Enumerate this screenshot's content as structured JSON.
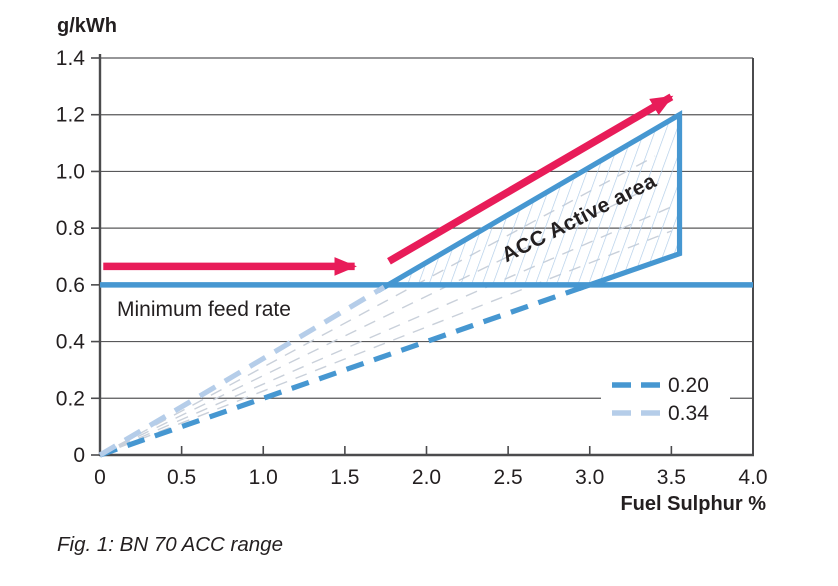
{
  "figure": {
    "caption": "Fig. 1: BN 70 ACC range"
  },
  "chart_data": {
    "type": "line",
    "title": "",
    "ylabel": "g/kWh",
    "xlabel": "Fuel Sulphur %",
    "xlim": [
      0,
      4.0
    ],
    "ylim": [
      0,
      1.4
    ],
    "grid": "horizontal",
    "legend_position": "lower-right",
    "x_ticks": [
      0,
      0.5,
      1.0,
      1.5,
      2.0,
      2.5,
      3.0,
      3.5,
      4.0
    ],
    "x_tick_labels": [
      "0",
      "0.5",
      "1.0",
      "1.5",
      "2.0",
      "2.5",
      "3.0",
      "3.5",
      "4.0"
    ],
    "y_ticks": [
      0,
      0.2,
      0.4,
      0.6,
      0.8,
      1.0,
      1.2,
      1.4
    ],
    "y_tick_labels": [
      "0",
      "0.2",
      "0.4",
      "0.6",
      "0.8",
      "1.0",
      "1.2",
      "1.4"
    ],
    "colors": {
      "red": "#e81c59",
      "blue": "#4697d1",
      "light_blue": "#b5cde9",
      "hatch": "#aecbe8",
      "grid": "#58585a",
      "axis": "#4b4b4d",
      "faint": "#c9d0da",
      "text": "#231f20"
    },
    "series": [
      {
        "name": "minimum_feed_rate",
        "label": "Minimum feed rate",
        "style": "solid",
        "color_key": "blue",
        "width": 5.5,
        "points": [
          [
            0,
            0.6
          ],
          [
            4.0,
            0.6
          ]
        ]
      },
      {
        "name": "ratio_0_20",
        "label": "0.20",
        "style": "dashed",
        "color_key": "blue",
        "width": 5.2,
        "points": [
          [
            0,
            0
          ],
          [
            2.96,
            0.592
          ]
        ]
      },
      {
        "name": "ratio_0_34",
        "label": "0.34",
        "style": "dashed",
        "color_key": "light_blue",
        "width": 5.2,
        "points": [
          [
            0,
            0
          ],
          [
            1.74,
            0.592
          ]
        ]
      }
    ],
    "guide_lines": [
      {
        "points": [
          [
            0,
            0
          ],
          [
            3.5,
            0.79
          ]
        ]
      },
      {
        "points": [
          [
            0,
            0
          ],
          [
            3.5,
            0.875
          ]
        ]
      },
      {
        "points": [
          [
            0,
            0
          ],
          [
            3.45,
            0.966
          ]
        ]
      },
      {
        "points": [
          [
            0,
            0
          ],
          [
            3.4,
            1.054
          ]
        ]
      }
    ],
    "active_area": {
      "label": "ACC Active area",
      "vertices": [
        [
          1.765,
          0.6
        ],
        [
          3.55,
          1.2
        ],
        [
          3.55,
          0.71
        ],
        [
          3.0,
          0.6
        ]
      ]
    },
    "arrows": [
      {
        "name": "constant-feed-rate-arrow",
        "points": [
          [
            0.02,
            0.665
          ],
          [
            1.56,
            0.665
          ]
        ]
      },
      {
        "name": "acc-feed-rate-arrow",
        "points": [
          [
            1.77,
            0.683
          ],
          [
            3.5,
            1.263
          ]
        ]
      }
    ],
    "annotations": {
      "minimum_feed_rate": "Minimum feed rate"
    },
    "legend": [
      {
        "label": "0.20",
        "color_key": "blue"
      },
      {
        "label": "0.34",
        "color_key": "light_blue"
      }
    ]
  }
}
